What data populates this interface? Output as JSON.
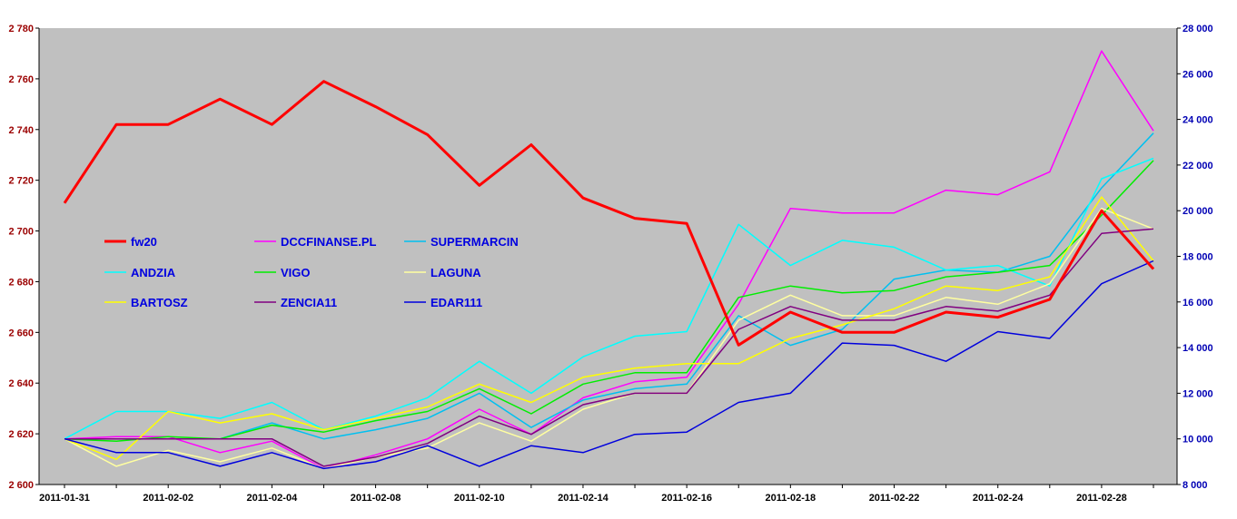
{
  "chart_data": {
    "type": "line",
    "title": "",
    "xlabel": "",
    "ylabel": "",
    "background": "#c0c0c0",
    "grid": false,
    "legend_position": "inside-left",
    "x": [
      "2011-01-31",
      "2011-02-01",
      "2011-02-02",
      "2011-02-03",
      "2011-02-04",
      "2011-02-07",
      "2011-02-08",
      "2011-02-09",
      "2011-02-10",
      "2011-02-11",
      "2011-02-14",
      "2011-02-15",
      "2011-02-16",
      "2011-02-17",
      "2011-02-18",
      "2011-02-21",
      "2011-02-22",
      "2011-02-23",
      "2011-02-24",
      "2011-02-25",
      "2011-02-28",
      "2011-03-01"
    ],
    "x_tick_labels": [
      "2011-01-31",
      "2011-02-02",
      "2011-02-04",
      "2011-02-08",
      "2011-02-10",
      "2011-02-14",
      "2011-02-16",
      "2011-02-18",
      "2011-02-22",
      "2011-02-24",
      "2011-02-28"
    ],
    "y_left": {
      "range": [
        2600,
        2780
      ],
      "ticks": [
        2600,
        2620,
        2640,
        2660,
        2680,
        2700,
        2720,
        2740,
        2760,
        2780
      ],
      "tick_labels": [
        "2 600",
        "2 620",
        "2 640",
        "2 660",
        "2 680",
        "2 700",
        "2 720",
        "2 740",
        "2 760",
        "2 780"
      ],
      "color": "#9b0000"
    },
    "y_right": {
      "range": [
        8000,
        28000
      ],
      "ticks": [
        8000,
        10000,
        12000,
        14000,
        16000,
        18000,
        20000,
        22000,
        24000,
        26000,
        28000
      ],
      "tick_labels": [
        "8 000",
        "10 000",
        "12 000",
        "14 000",
        "16 000",
        "18 000",
        "20 000",
        "22 000",
        "24 000",
        "26 000",
        "28 000"
      ],
      "color": "#0000b4"
    },
    "series": [
      {
        "name": "fw20",
        "axis": "left",
        "color": "#ff0000",
        "width": 3,
        "values": [
          2711,
          2742,
          2742,
          2752,
          2742,
          2759,
          2749,
          2738,
          2718,
          2734,
          2713,
          2705,
          2703,
          2655,
          2668,
          2660,
          2660,
          2668,
          2666,
          2673,
          2708,
          2685
        ]
      },
      {
        "name": "DCCFINANSE.PL",
        "axis": "right",
        "color": "#ff00ff",
        "width": 1.5,
        "values": [
          10000,
          10100,
          10100,
          9400,
          9900,
          8700,
          9300,
          10000,
          11300,
          10200,
          11800,
          12500,
          12700,
          15900,
          20100,
          19900,
          19900,
          20900,
          20700,
          21700,
          27000,
          23500
        ]
      },
      {
        "name": "SUPERMARCIN",
        "axis": "right",
        "color": "#00c0f0",
        "width": 1.5,
        "values": [
          10000,
          10000,
          10000,
          10000,
          10700,
          10000,
          10400,
          10900,
          12000,
          10500,
          11700,
          12200,
          12400,
          15400,
          14100,
          14800,
          17000,
          17400,
          17300,
          18000,
          21000,
          23400
        ]
      },
      {
        "name": "ANDZIA",
        "axis": "right",
        "color": "#00ffff",
        "width": 1.5,
        "values": [
          10000,
          11200,
          11200,
          10900,
          11600,
          10400,
          11000,
          11800,
          13400,
          12000,
          13600,
          14500,
          14700,
          19400,
          17600,
          18700,
          18400,
          17400,
          17600,
          16700,
          21400,
          22300
        ]
      },
      {
        "name": "VIGO",
        "axis": "right",
        "color": "#00ee00",
        "width": 1.5,
        "values": [
          10000,
          9900,
          10100,
          10000,
          10600,
          10300,
          10800,
          11200,
          12200,
          11100,
          12400,
          12900,
          12900,
          16200,
          16700,
          16400,
          16500,
          17100,
          17300,
          17600,
          19800,
          22200
        ]
      },
      {
        "name": "LAGUNA",
        "axis": "right",
        "color": "#ffffa0",
        "width": 1.5,
        "values": [
          10000,
          8800,
          9500,
          9000,
          9600,
          8700,
          9200,
          9600,
          10700,
          9900,
          11300,
          12000,
          12000,
          15200,
          16300,
          15400,
          15400,
          16200,
          15900,
          16800,
          20100,
          19200
        ]
      },
      {
        "name": "BARTOSZ",
        "axis": "right",
        "color": "#ffff00",
        "width": 1.5,
        "values": [
          10000,
          9100,
          11200,
          10700,
          11100,
          10400,
          10900,
          11400,
          12400,
          11600,
          12700,
          13100,
          13300,
          13300,
          14400,
          15000,
          15700,
          16700,
          16500,
          17100,
          20600,
          17800
        ]
      },
      {
        "name": "ZENCIA11",
        "axis": "right",
        "color": "#800080",
        "width": 1.5,
        "values": [
          10000,
          10000,
          10000,
          10000,
          10000,
          8800,
          9200,
          9800,
          11000,
          10200,
          11500,
          12000,
          12000,
          14800,
          15800,
          15200,
          15200,
          15800,
          15600,
          16300,
          19000,
          19200
        ]
      },
      {
        "name": "EDAR111",
        "axis": "right",
        "color": "#0000dd",
        "width": 1.5,
        "values": [
          10000,
          9400,
          9400,
          8800,
          9400,
          8700,
          9000,
          9700,
          8800,
          9700,
          9400,
          10200,
          10300,
          11600,
          12000,
          14200,
          14100,
          13400,
          14700,
          14400,
          16800,
          17800
        ]
      }
    ]
  }
}
